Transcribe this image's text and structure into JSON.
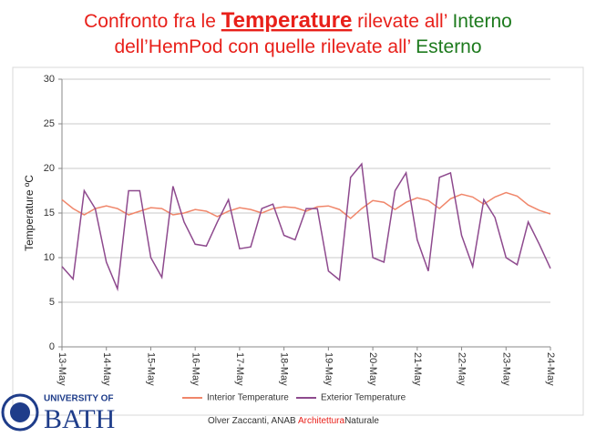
{
  "title_lines": [
    [
      {
        "text": "Confronto fra le ",
        "color": "#e8201a",
        "underline": false
      },
      {
        "text": "Temperature",
        "color": "#e8201a",
        "underline": true
      },
      {
        "text": " rilevate all’ ",
        "color": "#e8201a",
        "underline": false
      },
      {
        "text": "Interno",
        "color": "#1d7a1d",
        "underline": false
      }
    ],
    [
      {
        "text": "dell’HemPod con quelle rilevate all’ ",
        "color": "#e8201a",
        "underline": false
      },
      {
        "text": "Esterno",
        "color": "#1d7a1d",
        "underline": false
      }
    ]
  ],
  "footer": [
    {
      "text": "Olver Zaccanti, ANAB ",
      "color": "#333333"
    },
    {
      "text": "Architettura",
      "color": "#e8201a"
    },
    {
      "text": "Naturale",
      "color": "#333333"
    }
  ],
  "logo": {
    "line1": "UNIVERSITY OF",
    "line2": "BATH",
    "color": "#1f3d8a"
  },
  "chart_data": {
    "type": "line",
    "ylabel": "Temperature ºC",
    "grid": true,
    "legend": "bottom",
    "xlim": [
      13,
      24
    ],
    "xticks": [
      {
        "value": 13,
        "label": "13-May"
      },
      {
        "value": 14,
        "label": "14-May"
      },
      {
        "value": 15,
        "label": "15-May"
      },
      {
        "value": 16,
        "label": "16-May"
      },
      {
        "value": 17,
        "label": "17-May"
      },
      {
        "value": 18,
        "label": "18-May"
      },
      {
        "value": 19,
        "label": "19-May"
      },
      {
        "value": 20,
        "label": "20-May"
      },
      {
        "value": 21,
        "label": "21-May"
      },
      {
        "value": 22,
        "label": "22-May"
      },
      {
        "value": 23,
        "label": "23-May"
      },
      {
        "value": 24,
        "label": "24-May"
      }
    ],
    "ylim": [
      0,
      30
    ],
    "yticks": [
      0,
      5,
      10,
      15,
      20,
      25,
      30
    ],
    "x": [
      13,
      13.25,
      13.5,
      13.75,
      14,
      14.25,
      14.5,
      14.75,
      15,
      15.25,
      15.5,
      15.75,
      16,
      16.25,
      16.5,
      16.75,
      17,
      17.25,
      17.5,
      17.75,
      18,
      18.25,
      18.5,
      18.75,
      19,
      19.25,
      19.5,
      19.75,
      20,
      20.25,
      20.5,
      20.75,
      21,
      21.25,
      21.5,
      21.75,
      22,
      22.25,
      22.5,
      22.75,
      23,
      23.25,
      23.5,
      23.75,
      24
    ],
    "series": [
      {
        "name": "Interior Temperature",
        "color": "#f0866a",
        "values": [
          16.5,
          15.5,
          14.8,
          15.5,
          15.8,
          15.5,
          14.8,
          15.2,
          15.6,
          15.5,
          14.8,
          15.0,
          15.4,
          15.2,
          14.6,
          15.2,
          15.6,
          15.4,
          15.0,
          15.5,
          15.7,
          15.6,
          15.2,
          15.7,
          15.8,
          15.4,
          14.4,
          15.5,
          16.4,
          16.2,
          15.4,
          16.2,
          16.7,
          16.4,
          15.5,
          16.6,
          17.1,
          16.8,
          16.0,
          16.8,
          17.3,
          16.9,
          15.9,
          15.3,
          14.9
        ]
      },
      {
        "name": "Exterior Temperature",
        "color": "#8e4a8e",
        "values": [
          9.0,
          7.6,
          17.5,
          15.5,
          9.5,
          6.5,
          17.5,
          17.5,
          10.0,
          7.8,
          18.0,
          14.0,
          11.5,
          11.3,
          14.0,
          16.5,
          11.0,
          11.2,
          15.5,
          16.0,
          12.5,
          12.0,
          15.5,
          15.5,
          8.5,
          7.5,
          19.0,
          20.5,
          10.0,
          9.5,
          17.5,
          19.5,
          12.0,
          8.5,
          19.0,
          19.5,
          12.5,
          9.0,
          16.5,
          14.5,
          10.0,
          9.2,
          14.0,
          11.5,
          8.8
        ]
      }
    ]
  }
}
